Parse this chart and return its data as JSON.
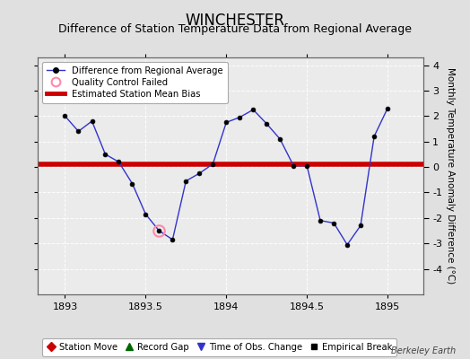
{
  "title": "WINCHESTER",
  "subtitle": "Difference of Station Temperature Data from Regional Average",
  "ylabel_right": "Monthly Temperature Anomaly Difference (°C)",
  "credit": "Berkeley Earth",
  "xlim": [
    1892.83,
    1895.22
  ],
  "ylim": [
    -5,
    4.3
  ],
  "yticks": [
    -4,
    -3,
    -2,
    -1,
    0,
    1,
    2,
    3,
    4
  ],
  "xticks": [
    1893,
    1893.5,
    1894,
    1894.5,
    1895
  ],
  "bias_value": 0.1,
  "line_color": "#3333cc",
  "bias_color": "#cc0000",
  "background_color": "#e0e0e0",
  "plot_background": "#ebebeb",
  "grid_color": "#ffffff",
  "x_data": [
    1893.0,
    1893.083,
    1893.167,
    1893.25,
    1893.333,
    1893.417,
    1893.5,
    1893.583,
    1893.667,
    1893.75,
    1893.833,
    1893.917,
    1894.0,
    1894.083,
    1894.167,
    1894.25,
    1894.333,
    1894.417,
    1894.5,
    1894.583,
    1894.667,
    1894.75,
    1894.833,
    1894.917,
    1895.0
  ],
  "y_data": [
    2.0,
    1.4,
    1.8,
    0.5,
    0.2,
    -0.65,
    -1.85,
    -2.5,
    -2.85,
    -0.55,
    -0.25,
    0.12,
    1.75,
    1.95,
    2.25,
    1.7,
    1.1,
    0.05,
    0.05,
    -2.1,
    -2.2,
    -3.05,
    -2.3,
    1.2,
    2.3
  ],
  "qc_fail_x": [
    1893.583
  ],
  "qc_fail_y": [
    -2.5
  ],
  "title_fontsize": 12,
  "subtitle_fontsize": 9,
  "tick_fontsize": 8,
  "label_fontsize": 7.5
}
